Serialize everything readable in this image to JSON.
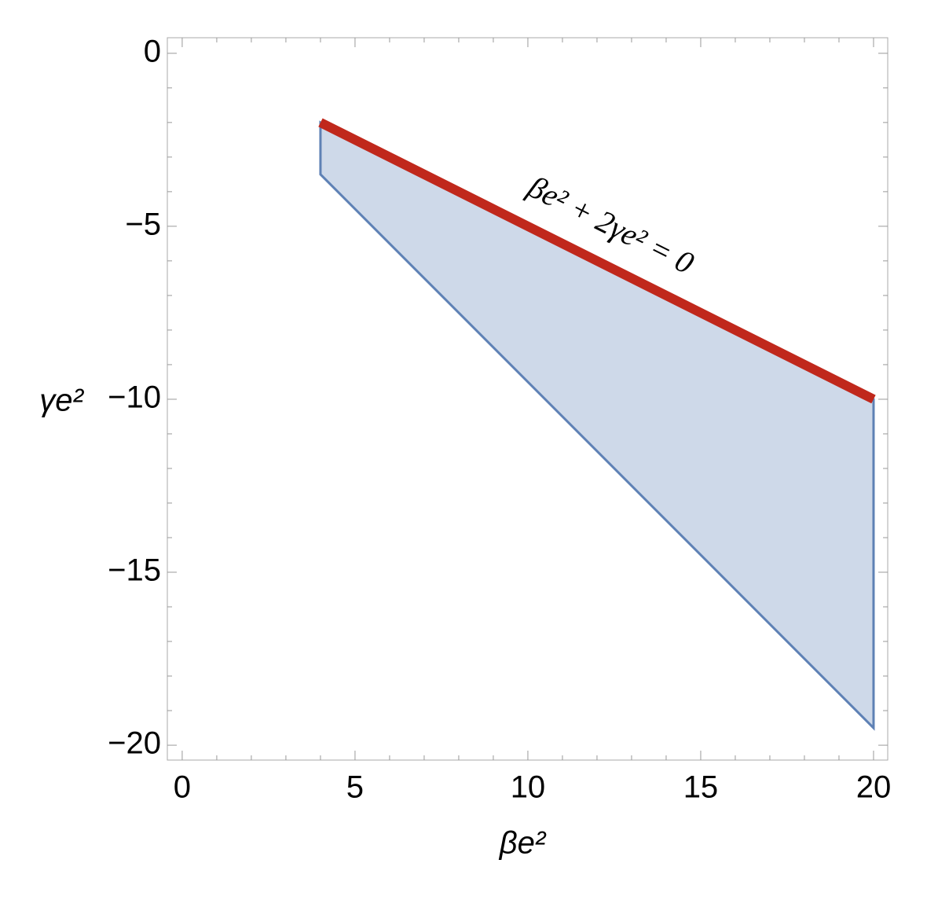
{
  "chart_data": {
    "type": "region",
    "xlabel": "βe²",
    "ylabel": "γe²",
    "annotation": "βe² + 2γe² = 0",
    "xlim": [
      -0.43,
      20.41
    ],
    "ylim": [
      -20.43,
      0.45
    ],
    "xticks": [
      0,
      5,
      10,
      15,
      20
    ],
    "yticks": [
      0,
      {
        "value": -5,
        "label": "−5"
      },
      {
        "value": -10,
        "label": "−10"
      },
      {
        "value": -15,
        "label": "−15"
      },
      {
        "value": -20,
        "label": "−20"
      }
    ],
    "xminor_ticks": [
      1,
      2,
      3,
      4,
      6,
      7,
      8,
      9,
      11,
      12,
      13,
      14,
      16,
      17,
      18,
      19
    ],
    "yminor_ticks": [
      -1,
      -2,
      -3,
      -4,
      -6,
      -7,
      -8,
      -9,
      -11,
      -12,
      -13,
      -14,
      -16,
      -17,
      -18,
      -19
    ],
    "region": {
      "x": [
        4,
        4,
        20,
        20
      ],
      "y": [
        -2,
        -3.5,
        -19.5,
        -10
      ],
      "color": "#5e81b5"
    },
    "line": {
      "x": [
        4,
        20
      ],
      "y": [
        -2,
        -10
      ],
      "color": "#c0281c"
    }
  }
}
